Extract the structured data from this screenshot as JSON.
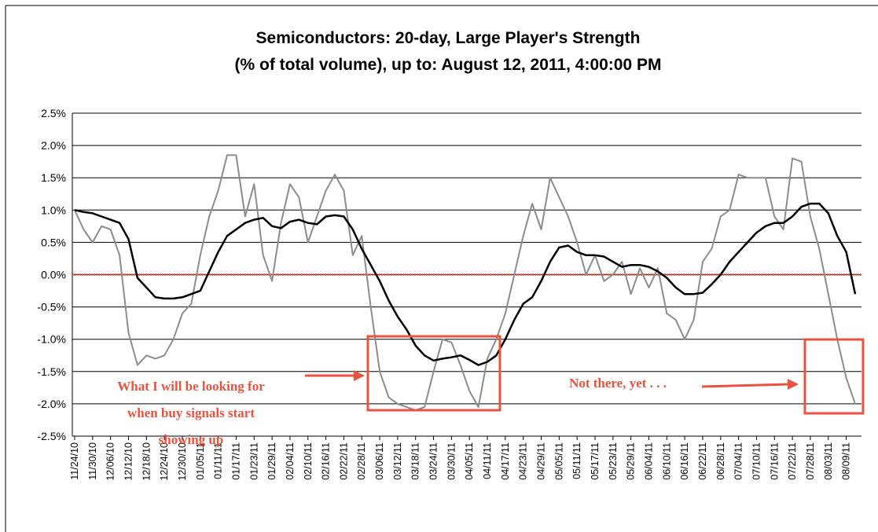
{
  "chart_data": {
    "type": "line",
    "title": [
      "Semiconductors: 20-day, Large Player's Strength",
      "(% of total volume), up to: August 12, 2011, 4:00:00 PM"
    ],
    "categories": [
      "11/24/10",
      null,
      "11/30/10",
      null,
      "12/06/10",
      null,
      "12/12/10",
      null,
      "12/18/10",
      null,
      "12/24/10",
      null,
      "12/30/10",
      null,
      "01/05/11",
      null,
      "01/11/11",
      null,
      "01/17/11",
      null,
      "01/23/11",
      null,
      "01/29/11",
      null,
      "02/04/11",
      null,
      "02/10/11",
      null,
      "02/16/11",
      null,
      "02/22/11",
      null,
      "02/28/11",
      null,
      "03/06/11",
      null,
      "03/12/11",
      null,
      "03/18/11",
      null,
      "03/24/11",
      null,
      "03/30/11",
      null,
      "04/05/11",
      null,
      "04/11/11",
      null,
      "04/17/11",
      null,
      "04/23/11",
      null,
      "04/29/11",
      null,
      "05/05/11",
      null,
      "05/11/11",
      null,
      "05/17/11",
      null,
      "05/23/11",
      null,
      "05/29/11",
      null,
      "06/04/11",
      null,
      "06/10/11",
      null,
      "06/16/11",
      null,
      "06/22/11",
      null,
      "06/28/11",
      null,
      "07/04/11",
      null,
      "07/10/11",
      null,
      "07/16/11",
      null,
      "07/22/11",
      null,
      "07/28/11",
      null,
      "08/03/11",
      null,
      "08/09/11",
      null
    ],
    "series": [
      {
        "color": "#8c8c8c",
        "values": [
          1.0,
          0.7,
          0.5,
          0.75,
          0.7,
          0.3,
          -0.9,
          -1.4,
          -1.25,
          -1.3,
          -1.25,
          -1.0,
          -0.6,
          -0.45,
          0.3,
          0.9,
          1.3,
          1.85,
          1.85,
          0.9,
          1.4,
          0.3,
          -0.1,
          0.8,
          1.4,
          1.2,
          0.5,
          0.9,
          1.3,
          1.55,
          1.3,
          0.3,
          0.6,
          -0.5,
          -1.5,
          -1.9,
          -2.0,
          -2.05,
          -2.1,
          -2.05,
          -1.5,
          -1.0,
          -1.05,
          -1.4,
          -1.8,
          -2.05,
          -1.3,
          -1.0,
          -0.6,
          0.0,
          0.6,
          1.1,
          0.7,
          1.5,
          1.2,
          0.9,
          0.5,
          0.0,
          0.3,
          -0.1,
          0.0,
          0.2,
          -0.3,
          0.1,
          -0.2,
          0.1,
          -0.6,
          -0.7,
          -1.0,
          -0.7,
          0.2,
          0.4,
          0.9,
          1.0,
          1.55,
          1.5,
          1.5,
          1.5,
          0.9,
          0.7,
          1.8,
          1.75,
          0.9,
          0.4,
          -0.3,
          -1.0,
          -1.6,
          -2.0
        ]
      },
      {
        "color": "#000000",
        "values": [
          1.0,
          0.97,
          0.95,
          0.9,
          0.85,
          0.8,
          0.55,
          -0.05,
          -0.2,
          -0.35,
          -0.37,
          -0.37,
          -0.35,
          -0.3,
          -0.25,
          0.05,
          0.35,
          0.6,
          0.7,
          0.8,
          0.85,
          0.88,
          0.75,
          0.72,
          0.82,
          0.85,
          0.8,
          0.78,
          0.9,
          0.92,
          0.9,
          0.7,
          0.4,
          0.15,
          -0.1,
          -0.4,
          -0.65,
          -0.85,
          -1.1,
          -1.25,
          -1.33,
          -1.3,
          -1.28,
          -1.25,
          -1.32,
          -1.4,
          -1.35,
          -1.25,
          -1.0,
          -0.7,
          -0.45,
          -0.35,
          -0.1,
          0.2,
          0.42,
          0.45,
          0.35,
          0.3,
          0.3,
          0.28,
          0.2,
          0.12,
          0.15,
          0.15,
          0.12,
          0.05,
          -0.05,
          -0.2,
          -0.3,
          -0.3,
          -0.28,
          -0.15,
          0.0,
          0.2,
          0.35,
          0.5,
          0.65,
          0.75,
          0.8,
          0.8,
          0.9,
          1.05,
          1.1,
          1.1,
          0.95,
          0.6,
          0.35,
          -0.3
        ]
      }
    ],
    "ylim": [
      -2.5,
      2.5
    ],
    "yticks": [
      {
        "value": -2.5,
        "label": "-2.5%"
      },
      {
        "value": -2.0,
        "label": "-2.0%"
      },
      {
        "value": -1.5,
        "label": "-1.5%"
      },
      {
        "value": -1.0,
        "label": "-1.0%"
      },
      {
        "value": -0.5,
        "label": "-0.5%"
      },
      {
        "value": 0,
        "label": "0.0%"
      },
      {
        "value": 0.5,
        "label": "0.5%"
      },
      {
        "value": 1.0,
        "label": "1.0%"
      },
      {
        "value": 1.5,
        "label": "1.5%"
      },
      {
        "value": 2.0,
        "label": "2.0%"
      },
      {
        "value": 2.5,
        "label": "2.5%"
      }
    ],
    "grid": true,
    "zero_line_color": "#e8523f",
    "annotations": [
      "What I will be looking for",
      "when buy signals start",
      "showing up",
      "Not there, yet . . ."
    ]
  }
}
